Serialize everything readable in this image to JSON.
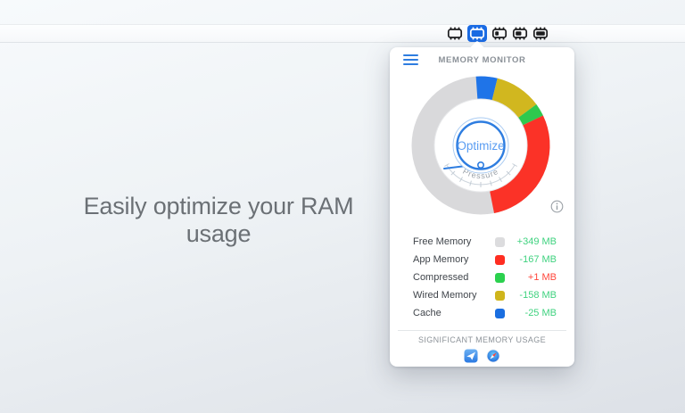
{
  "headline": "Easily optimize your RAM usage",
  "menubar": {
    "icons": [
      {
        "name": "ram-chip-empty-icon",
        "fill_level": 0,
        "selected": false
      },
      {
        "name": "ram-chip-selected-icon",
        "fill_level": 0,
        "selected": true
      },
      {
        "name": "ram-chip-low-icon",
        "fill_level": 0.4,
        "selected": false
      },
      {
        "name": "ram-chip-mid-icon",
        "fill_level": 0.65,
        "selected": false
      },
      {
        "name": "ram-chip-full-icon",
        "fill_level": 1,
        "selected": false
      }
    ],
    "selected_color": "#1a6be4"
  },
  "popover": {
    "title": "MEMORY MONITOR",
    "menu_icon": "hamburger-icon",
    "info_icon": "info-icon",
    "optimize_button": {
      "label": "Optimize",
      "ring_color": "#2e7de0",
      "label_color": "#5a9df2"
    },
    "gauge": {
      "label": "Pressure",
      "needle_color": "#2e7de0"
    },
    "legend": [
      {
        "label": "Free Memory",
        "swatch_color": "#dcdcde",
        "delta": "+349 MB",
        "delta_color": "#3fd27f"
      },
      {
        "label": "App Memory",
        "swatch_color": "#ff2d21",
        "delta": "-167 MB",
        "delta_color": "#3fd27f"
      },
      {
        "label": "Compressed",
        "swatch_color": "#2bd14e",
        "delta": "+1 MB",
        "delta_color": "#ff453a"
      },
      {
        "label": "Wired Memory",
        "swatch_color": "#cfb51c",
        "delta": "-158 MB",
        "delta_color": "#3fd27f"
      },
      {
        "label": "Cache",
        "swatch_color": "#1a6ee0",
        "delta": "-25 MB",
        "delta_color": "#3fd27f"
      }
    ],
    "footer": {
      "label": "SIGNIFICANT MEMORY USAGE",
      "app_icons": [
        "mail-app-icon",
        "safari-app-icon"
      ]
    }
  },
  "chart_data": {
    "type": "pie",
    "title": "RAM usage donut",
    "start_angle_deg": -4,
    "direction": "clockwise",
    "slices": [
      {
        "name": "Cache",
        "color": "#1f74e8",
        "percent": 5,
        "remainder": false
      },
      {
        "name": "Wired Memory",
        "color": "#d1b71f",
        "percent": 11,
        "remainder": false
      },
      {
        "name": "Compressed",
        "color": "#2ec94e",
        "percent": 3,
        "remainder": false
      },
      {
        "name": "App Memory",
        "color": "#fb3227",
        "percent": 29,
        "remainder": false
      },
      {
        "name": "Free Memory",
        "color": "#d9d9db",
        "percent": 52,
        "remainder": true
      }
    ]
  }
}
